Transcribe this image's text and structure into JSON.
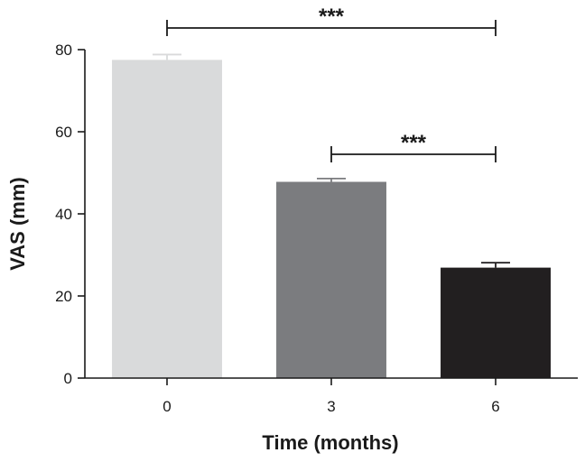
{
  "chart_data": {
    "type": "bar",
    "title": "",
    "xlabel": "Time (months)",
    "ylabel": "VAS (mm)",
    "categories": [
      "0",
      "3",
      "6"
    ],
    "values": [
      77.5,
      47.8,
      26.9
    ],
    "errors": [
      1.3,
      0.8,
      1.2
    ],
    "ylim": [
      0,
      80
    ],
    "yticks": [
      "0",
      "20",
      "40",
      "60",
      "80"
    ],
    "bar_colors": [
      "#d9dadb",
      "#7b7c7f",
      "#221f20"
    ],
    "error_colors": [
      "#d9dadb",
      "#7b7c7f",
      "#221f20"
    ],
    "grid": false,
    "significance": [
      {
        "from": "0",
        "to": "6",
        "label": "***"
      },
      {
        "from": "3",
        "to": "6",
        "label": "***"
      }
    ]
  }
}
